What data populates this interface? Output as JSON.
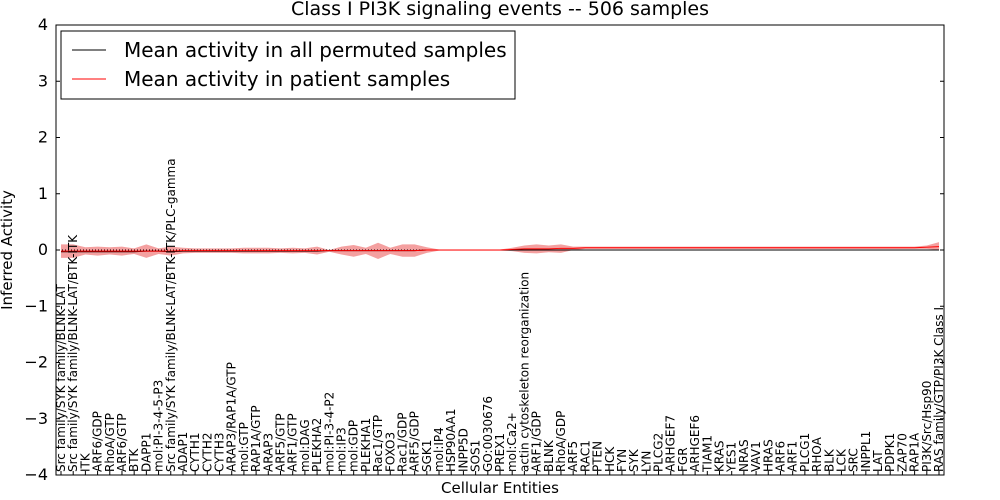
{
  "chart_data": {
    "type": "line",
    "title": "Class I PI3K signaling events -- 506 samples",
    "xlabel": "Cellular Entities",
    "ylabel": "Inferred Activity",
    "ylim": [
      -4,
      4
    ],
    "yticks": [
      -4,
      -3,
      -2,
      -1,
      0,
      1,
      2,
      3,
      4
    ],
    "ytick_labels": [
      "−4",
      "−3",
      "−2",
      "−1",
      "0",
      "1",
      "2",
      "3",
      "4"
    ],
    "legend_position": "top-left",
    "categories": [
      "Src family/SYK family/BLNK-LAT",
      "Src family/SYK family/BLNK-LAT/BTK-ITK",
      "ITK",
      "ARF6/GDP",
      "RhoA/GTP",
      "ARF6/GTP",
      "BTK",
      "DAPP1",
      "mol:PI-3-4-5-P3",
      "Src family/SYK family/BLNK-LAT/BTK-ITK/PLC-gamma",
      "ADAP1",
      "CYTH1",
      "CYTH2",
      "CYTH3",
      "ARAP3/RAP1A/GTP",
      "mol:GTP",
      "RAP1A/GTP",
      "ARAP3",
      "ARF5/GTP",
      "ARF1/GTP",
      "mol:DAG",
      "PLEKHA2",
      "mol:PI-3-4-P2",
      "mol:IP3",
      "mol:GDP",
      "PLEKHA1",
      "Rac1/GTP",
      "FOXO3",
      "Rac1/GDP",
      "ARF5/GDP",
      "SGK1",
      "mol:IP4",
      "HSP90AA1",
      "INPP5D",
      "SOS1",
      "GO:0030676",
      "PREX1",
      "mol:Ca2+",
      "actin cytoskeleton reorganization",
      "ARF1/GDP",
      "BLNK",
      "RhoA/GDP",
      "ARF5",
      "RAC1",
      "PTEN",
      "HCK",
      "FYN",
      "SYK",
      "LYN",
      "PLCG2",
      "ARHGEF7",
      "FGR",
      "ARHGEF6",
      "TIAM1",
      "KRAS",
      "YES1",
      "NRAS",
      "VAV1",
      "HRAS",
      "ARF6",
      "ARF1",
      "PLCG1",
      "RHOA",
      "BLK",
      "LCK",
      "SRC",
      "INPPL1",
      "LAT",
      "PDPK1",
      "ZAP70",
      "RAP1A",
      "PI3K/Src/Hsp90",
      "RAS family/GTP/PI3K Class I"
    ],
    "series": [
      {
        "name": "Mean activity in all permuted samples",
        "color": "#000000",
        "values": [
          -0.03,
          -0.03,
          -0.03,
          -0.03,
          -0.03,
          -0.03,
          -0.03,
          -0.02,
          -0.02,
          -0.03,
          -0.02,
          -0.02,
          -0.02,
          -0.02,
          -0.02,
          -0.02,
          -0.02,
          -0.02,
          -0.02,
          -0.02,
          -0.02,
          -0.02,
          -0.01,
          -0.01,
          -0.01,
          -0.01,
          -0.01,
          -0.01,
          -0.01,
          -0.01,
          0.0,
          0.0,
          0.0,
          0.0,
          0.0,
          0.0,
          0.0,
          0.0,
          0.0,
          0.0,
          0.0,
          0.0,
          0.0,
          0.0,
          0.0,
          0.0,
          0.0,
          0.0,
          0.0,
          0.0,
          0.0,
          0.0,
          0.0,
          0.0,
          0.0,
          0.0,
          0.0,
          0.0,
          0.0,
          0.0,
          0.0,
          0.0,
          0.0,
          0.0,
          0.0,
          0.0,
          0.0,
          0.0,
          0.0,
          0.0,
          0.0,
          0.0,
          0.0
        ]
      },
      {
        "name": "Mean activity in patient samples",
        "color": "#ff0000",
        "values": [
          -0.02,
          -0.02,
          -0.02,
          -0.02,
          -0.02,
          -0.02,
          -0.02,
          -0.02,
          -0.02,
          -0.02,
          -0.01,
          -0.01,
          -0.01,
          -0.01,
          -0.01,
          -0.01,
          -0.01,
          -0.01,
          -0.01,
          -0.01,
          -0.01,
          -0.01,
          -0.01,
          -0.01,
          -0.01,
          -0.01,
          -0.01,
          -0.01,
          -0.01,
          -0.01,
          0.0,
          0.0,
          0.0,
          0.0,
          0.0,
          0.0,
          0.0,
          0.01,
          0.02,
          0.02,
          0.02,
          0.03,
          0.03,
          0.04,
          0.04,
          0.04,
          0.04,
          0.04,
          0.04,
          0.04,
          0.04,
          0.04,
          0.04,
          0.04,
          0.04,
          0.04,
          0.04,
          0.04,
          0.04,
          0.04,
          0.04,
          0.04,
          0.04,
          0.04,
          0.04,
          0.04,
          0.04,
          0.04,
          0.04,
          0.04,
          0.04,
          0.05,
          0.06
        ],
        "band_upper": [
          0.1,
          0.1,
          0.05,
          0.06,
          0.05,
          0.06,
          0.03,
          0.1,
          0.03,
          0.06,
          0.04,
          0.03,
          0.03,
          0.03,
          0.03,
          0.04,
          0.04,
          0.04,
          0.03,
          0.04,
          0.03,
          0.06,
          0.0,
          0.06,
          0.09,
          0.04,
          0.13,
          0.04,
          0.1,
          0.1,
          0.05,
          0.01,
          0.01,
          0.01,
          0.01,
          0.01,
          0.01,
          0.04,
          0.08,
          0.1,
          0.08,
          0.1,
          0.06,
          0.06,
          0.06,
          0.06,
          0.06,
          0.06,
          0.06,
          0.06,
          0.06,
          0.06,
          0.06,
          0.06,
          0.06,
          0.06,
          0.06,
          0.06,
          0.06,
          0.06,
          0.06,
          0.06,
          0.06,
          0.06,
          0.06,
          0.06,
          0.06,
          0.06,
          0.06,
          0.06,
          0.06,
          0.08,
          0.14
        ],
        "band_lower": [
          -0.14,
          -0.14,
          -0.08,
          -0.1,
          -0.08,
          -0.1,
          -0.07,
          -0.14,
          -0.07,
          -0.1,
          -0.06,
          -0.05,
          -0.05,
          -0.05,
          -0.05,
          -0.06,
          -0.06,
          -0.06,
          -0.05,
          -0.06,
          -0.05,
          -0.08,
          -0.03,
          -0.08,
          -0.12,
          -0.07,
          -0.16,
          -0.07,
          -0.12,
          -0.12,
          -0.05,
          -0.01,
          -0.01,
          -0.01,
          -0.01,
          -0.01,
          -0.01,
          -0.02,
          -0.05,
          -0.06,
          -0.04,
          -0.05,
          0.0,
          0.02,
          0.02,
          0.02,
          0.02,
          0.02,
          0.02,
          0.02,
          0.02,
          0.02,
          0.02,
          0.02,
          0.02,
          0.02,
          0.02,
          0.02,
          0.02,
          0.02,
          0.02,
          0.02,
          0.02,
          0.02,
          0.02,
          0.02,
          0.02,
          0.02,
          0.02,
          0.02,
          0.02,
          0.02,
          0.0
        ]
      }
    ],
    "band_color": "#f08080"
  }
}
